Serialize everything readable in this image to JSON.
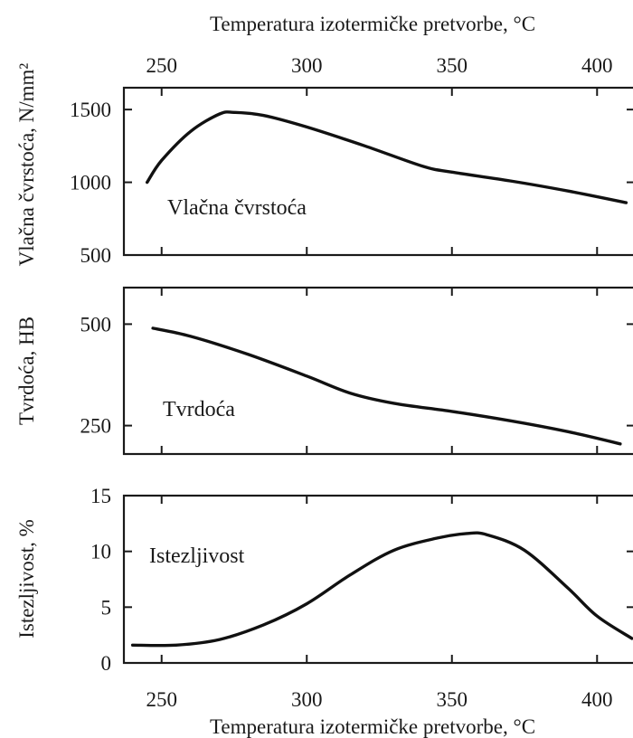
{
  "x_axis": {
    "label": "Temperatura izotermičke pretvorbe, °C",
    "ticks": [
      250,
      300,
      350,
      400
    ],
    "range": [
      237,
      413
    ]
  },
  "chart_data": [
    {
      "type": "line",
      "ylabel": "Vlačna čvrstoća, N/mm²",
      "ylim": [
        500,
        1650
      ],
      "yticks": [
        500,
        1000,
        1500
      ],
      "series": [
        {
          "name": "Vlačna čvrstoća",
          "x": [
            245,
            250,
            260,
            270,
            275,
            285,
            300,
            320,
            340,
            350,
            370,
            390,
            410
          ],
          "y": [
            1000,
            1150,
            1350,
            1470,
            1480,
            1460,
            1380,
            1250,
            1110,
            1070,
            1010,
            940,
            860
          ]
        }
      ],
      "grid": false
    },
    {
      "type": "line",
      "ylabel": "Tvrdoća, HB",
      "ylim": [
        180,
        590
      ],
      "yticks": [
        250,
        500
      ],
      "series": [
        {
          "name": "Tvrdoća",
          "x": [
            247,
            260,
            280,
            300,
            315,
            330,
            350,
            370,
            390,
            408
          ],
          "y": [
            490,
            470,
            425,
            372,
            330,
            305,
            285,
            262,
            235,
            205
          ]
        }
      ],
      "grid": false
    },
    {
      "type": "line",
      "ylabel": "Istezljivost, %",
      "ylim": [
        0,
        15
      ],
      "yticks": [
        0,
        5,
        10,
        15
      ],
      "series": [
        {
          "name": "Istezljivost",
          "x": [
            240,
            255,
            270,
            285,
            300,
            315,
            330,
            345,
            355,
            362,
            375,
            390,
            400,
            412
          ],
          "y": [
            1.6,
            1.6,
            2.1,
            3.4,
            5.3,
            7.9,
            10.1,
            11.2,
            11.6,
            11.5,
            10.1,
            6.7,
            4.2,
            2.2
          ]
        }
      ],
      "grid": false
    }
  ]
}
